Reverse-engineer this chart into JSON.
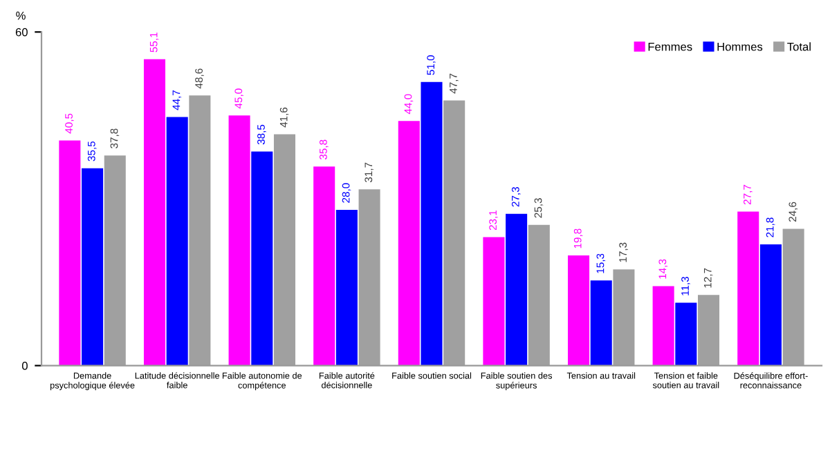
{
  "chart_data": {
    "type": "bar",
    "ylabel": "%",
    "ylim": [
      0,
      60
    ],
    "yticks": [
      0,
      60
    ],
    "grid": false,
    "legend": "top right",
    "categories": [
      "Demande\npsychologique élevée",
      "Latitude décisionnelle\nfaible",
      "Faible autonomie de\ncompétence",
      "Faible autorité\ndécisionnelle",
      "Faible soutien social",
      "Faible soutien des\nsupérieurs",
      "Tension au travail",
      "Tension et faible\nsoutien au travail",
      "Déséquilibre effort-\nreconnaissance"
    ],
    "series": [
      {
        "name": "Femmes",
        "color": "#ff00ff",
        "values": [
          40.5,
          55.1,
          45.0,
          35.8,
          44.0,
          23.1,
          19.8,
          14.3,
          27.7
        ],
        "value_labels": [
          "40,5",
          "55,1",
          "45,0",
          "35,8",
          "44,0",
          "23,1",
          "19,8",
          "14,3",
          "27,7"
        ]
      },
      {
        "name": "Hommes",
        "color": "#0000ff",
        "values": [
          35.5,
          44.7,
          38.5,
          28.0,
          51.0,
          27.3,
          15.3,
          11.3,
          21.8
        ],
        "value_labels": [
          "35,5",
          "44,7",
          "38,5",
          "28,0",
          "51,0",
          "27,3",
          "15,3",
          "11,3",
          "21,8"
        ]
      },
      {
        "name": "Total",
        "color": "#a0a0a0",
        "values": [
          37.8,
          48.6,
          41.6,
          31.7,
          47.7,
          25.3,
          17.3,
          12.7,
          24.6
        ],
        "value_labels": [
          "37,8",
          "48,6",
          "41,6",
          "31,7",
          "47,7",
          "25,3",
          "17,3",
          "12,7",
          "24,6"
        ]
      }
    ]
  }
}
